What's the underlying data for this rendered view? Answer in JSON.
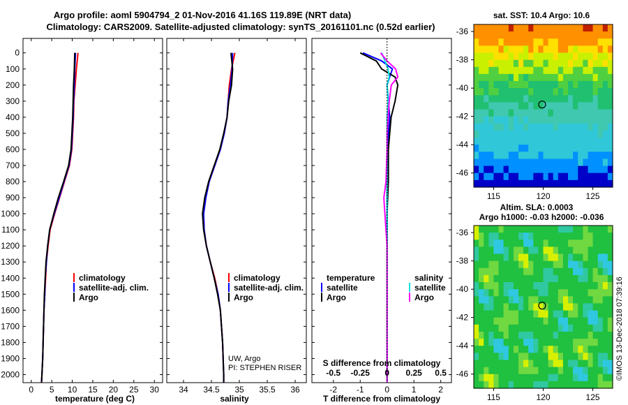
{
  "title_line1": "Argo profile: aoml 5904794_2 01-Nov-2016 41.16S 119.89E (NRT data)",
  "title_line2": "Climatology: CARS2009. Satellite-adjusted climatology: synTS_20161101.nc (0.52d earlier)",
  "depth_ticks": [
    0,
    100,
    200,
    300,
    400,
    500,
    600,
    700,
    800,
    900,
    1000,
    1100,
    1200,
    1300,
    1400,
    1500,
    1600,
    1700,
    1800,
    1900,
    2000
  ],
  "colors": {
    "climatology": "#ff0000",
    "satellite": "#0000ff",
    "argo": "#000000",
    "sal_satellite": "#00e0e0",
    "sal_argo": "#ff00ff"
  },
  "chart_data": [
    {
      "type": "line",
      "name": "temperature",
      "xlabel": "temperature (deg C)",
      "xlim": [
        -2,
        32
      ],
      "ylim": [
        0,
        2050
      ],
      "xticks": [
        0,
        5,
        10,
        15,
        20,
        25,
        30
      ],
      "legend": [
        "climatology",
        "satellite-adj. clim.",
        "Argo"
      ],
      "series": [
        {
          "name": "climatology",
          "depth": [
            0,
            100,
            200,
            300,
            400,
            500,
            600,
            700,
            800,
            900,
            1000,
            1100,
            1200,
            1300,
            1400,
            1500,
            1600,
            1700,
            1800,
            1900,
            2000,
            2050
          ],
          "values": [
            11.4,
            11.0,
            10.7,
            10.4,
            10.3,
            10.1,
            9.9,
            9.3,
            8.1,
            6.9,
            5.7,
            4.6,
            4.1,
            3.7,
            3.5,
            3.3,
            3.1,
            3.0,
            2.9,
            2.8,
            2.6,
            2.5
          ]
        },
        {
          "name": "satellite-adj. clim.",
          "depth": [
            0,
            100,
            200,
            300,
            400,
            500,
            600,
            700,
            800,
            900,
            1000,
            1100,
            1200,
            1300,
            1400,
            1500,
            1600,
            1700,
            1800,
            1900,
            2000,
            2050
          ],
          "values": [
            10.8,
            10.6,
            10.5,
            10.3,
            10.2,
            10.0,
            9.8,
            9.2,
            8.0,
            6.8,
            5.6,
            4.5,
            4.0,
            3.7,
            3.4,
            3.3,
            3.1,
            3.0,
            2.9,
            2.8,
            2.6,
            2.5
          ]
        },
        {
          "name": "Argo",
          "depth": [
            0,
            100,
            200,
            300,
            400,
            500,
            600,
            700,
            800,
            900,
            1000,
            1100,
            1200,
            1300,
            1400,
            1500,
            1600,
            1700,
            1800,
            1900,
            2000,
            2050
          ],
          "values": [
            10.6,
            10.5,
            10.3,
            10.2,
            10.1,
            9.9,
            9.7,
            9.1,
            7.9,
            6.6,
            5.5,
            4.5,
            4.0,
            3.6,
            3.4,
            3.2,
            3.1,
            3.0,
            2.9,
            2.8,
            2.6,
            2.5
          ]
        }
      ]
    },
    {
      "type": "line",
      "name": "salinity",
      "xlabel": "salinity",
      "xlim": [
        33.7,
        36.2
      ],
      "ylim": [
        0,
        2050
      ],
      "xticks": [
        34,
        34.5,
        35,
        35.5,
        36
      ],
      "legend": [
        "climatology",
        "satellite-adj. clim.",
        "Argo"
      ],
      "annotation_line1": "UW, Argo",
      "annotation_line2": "PI: STEPHEN RISER",
      "series": [
        {
          "name": "climatology",
          "depth": [
            0,
            100,
            200,
            300,
            400,
            500,
            600,
            700,
            800,
            900,
            1000,
            1100,
            1200,
            1300,
            1400,
            1500,
            1600,
            1700,
            1800,
            1900,
            2000,
            2050
          ],
          "values": [
            34.92,
            34.86,
            34.82,
            34.8,
            34.78,
            34.73,
            34.66,
            34.56,
            34.46,
            34.4,
            34.36,
            34.37,
            34.41,
            34.48,
            34.56,
            34.62,
            34.66,
            34.68,
            34.7,
            34.71,
            34.72,
            34.72
          ]
        },
        {
          "name": "satellite-adj. clim.",
          "depth": [
            0,
            100,
            200,
            300,
            400,
            500,
            600,
            700,
            800,
            900,
            1000,
            1100,
            1200,
            1300,
            1400,
            1500,
            1600,
            1700,
            1800,
            1900,
            2000,
            2050
          ],
          "values": [
            34.88,
            34.87,
            34.84,
            34.8,
            34.78,
            34.73,
            34.66,
            34.56,
            34.46,
            34.4,
            34.36,
            34.37,
            34.41,
            34.48,
            34.55,
            34.62,
            34.66,
            34.68,
            34.7,
            34.71,
            34.72,
            34.72
          ]
        },
        {
          "name": "Argo",
          "depth": [
            0,
            100,
            200,
            300,
            400,
            500,
            600,
            700,
            800,
            900,
            1000,
            1100,
            1200,
            1300,
            1400,
            1500,
            1600,
            1700,
            1800,
            1900,
            2000,
            2050
          ],
          "values": [
            34.85,
            34.88,
            34.86,
            34.81,
            34.78,
            34.72,
            34.65,
            34.55,
            34.45,
            34.38,
            34.34,
            34.36,
            34.41,
            34.48,
            34.55,
            34.61,
            34.66,
            34.68,
            34.7,
            34.71,
            34.72,
            34.72
          ]
        }
      ]
    },
    {
      "type": "line",
      "name": "difference",
      "xlabel": "T difference from climatology",
      "s_axis_label": "S difference from climatology",
      "xlim": [
        -2.8,
        2.4
      ],
      "ylim": [
        0,
        2050
      ],
      "xticks": [
        -2,
        -1,
        0,
        1,
        2
      ],
      "s_ticks": [
        "-0.5",
        "-0.25",
        "0",
        "0.25",
        "0.5"
      ],
      "legend_temperature_title": "temperature",
      "legend_salinity_title": "salinity",
      "legend_items": [
        "satellite",
        "Argo"
      ],
      "series": [
        {
          "name": "T satellite",
          "depth": [
            0,
            50,
            100,
            150,
            200,
            300,
            400,
            500,
            600,
            800,
            1000,
            1200,
            1400,
            1600,
            1800,
            2000,
            2050
          ],
          "values": [
            -0.9,
            -0.2,
            0.2,
            0.1,
            0.0,
            0.05,
            0.1,
            0.05,
            0.02,
            0.0,
            0.0,
            0.0,
            0.0,
            0.0,
            0.0,
            0.0,
            0.0
          ]
        },
        {
          "name": "T Argo",
          "depth": [
            0,
            50,
            100,
            150,
            200,
            300,
            400,
            500,
            600,
            800,
            1000,
            1200,
            1400,
            1600,
            1800,
            2000,
            2050
          ],
          "values": [
            -1.0,
            -0.4,
            -0.2,
            0.3,
            0.4,
            0.3,
            0.15,
            0.1,
            0.05,
            0.05,
            0.0,
            0.0,
            0.0,
            0.0,
            0.0,
            0.0,
            0.0
          ]
        },
        {
          "name": "S satellite",
          "depth": [
            0,
            50,
            100,
            150,
            200,
            300,
            400,
            500,
            600,
            800,
            1000,
            1200,
            1400,
            1600,
            1800,
            2000,
            2050
          ],
          "values": [
            -0.05,
            -0.02,
            0.01,
            0.02,
            0.0,
            0.01,
            0.0,
            0.0,
            0.0,
            0.0,
            0.0,
            0.0,
            0.0,
            0.0,
            0.0,
            0.0,
            0.0
          ]
        },
        {
          "name": "S Argo",
          "depth": [
            0,
            50,
            100,
            150,
            200,
            300,
            400,
            500,
            600,
            800,
            900,
            1000,
            1200,
            1400,
            1600,
            1800,
            2000,
            2050
          ],
          "values": [
            -0.06,
            0.0,
            0.08,
            0.1,
            0.04,
            0.02,
            0.01,
            0.0,
            0.0,
            -0.01,
            -0.03,
            -0.02,
            0.0,
            0.0,
            0.0,
            0.0,
            0.0,
            0.0
          ]
        }
      ]
    },
    {
      "type": "heatmap",
      "name": "sst_map",
      "title": "sat. SST: 10.4 Argo: 10.6",
      "xticks": [
        115,
        120,
        125
      ],
      "yticks": [
        -36,
        -38,
        -40,
        -42,
        -44,
        -46
      ],
      "xlim": [
        113,
        127
      ],
      "ylim": [
        -47,
        -35.5
      ],
      "argo_position": {
        "lon": 119.89,
        "lat": -41.16
      }
    },
    {
      "type": "heatmap",
      "name": "sla_map",
      "title_line1": "Altim. SLA: 0.0003",
      "title_line2": "Argo h1000: -0.03 h2000: -0.036",
      "xticks": [
        115,
        120,
        125
      ],
      "yticks": [
        -36,
        -38,
        -40,
        -42,
        -44,
        -46
      ],
      "xlim": [
        113,
        127
      ],
      "ylim": [
        -47,
        -35.5
      ],
      "argo_position": {
        "lon": 119.89,
        "lat": -41.16
      }
    }
  ],
  "footer": "©IMOS 13-Dec-2018 07:39:16"
}
